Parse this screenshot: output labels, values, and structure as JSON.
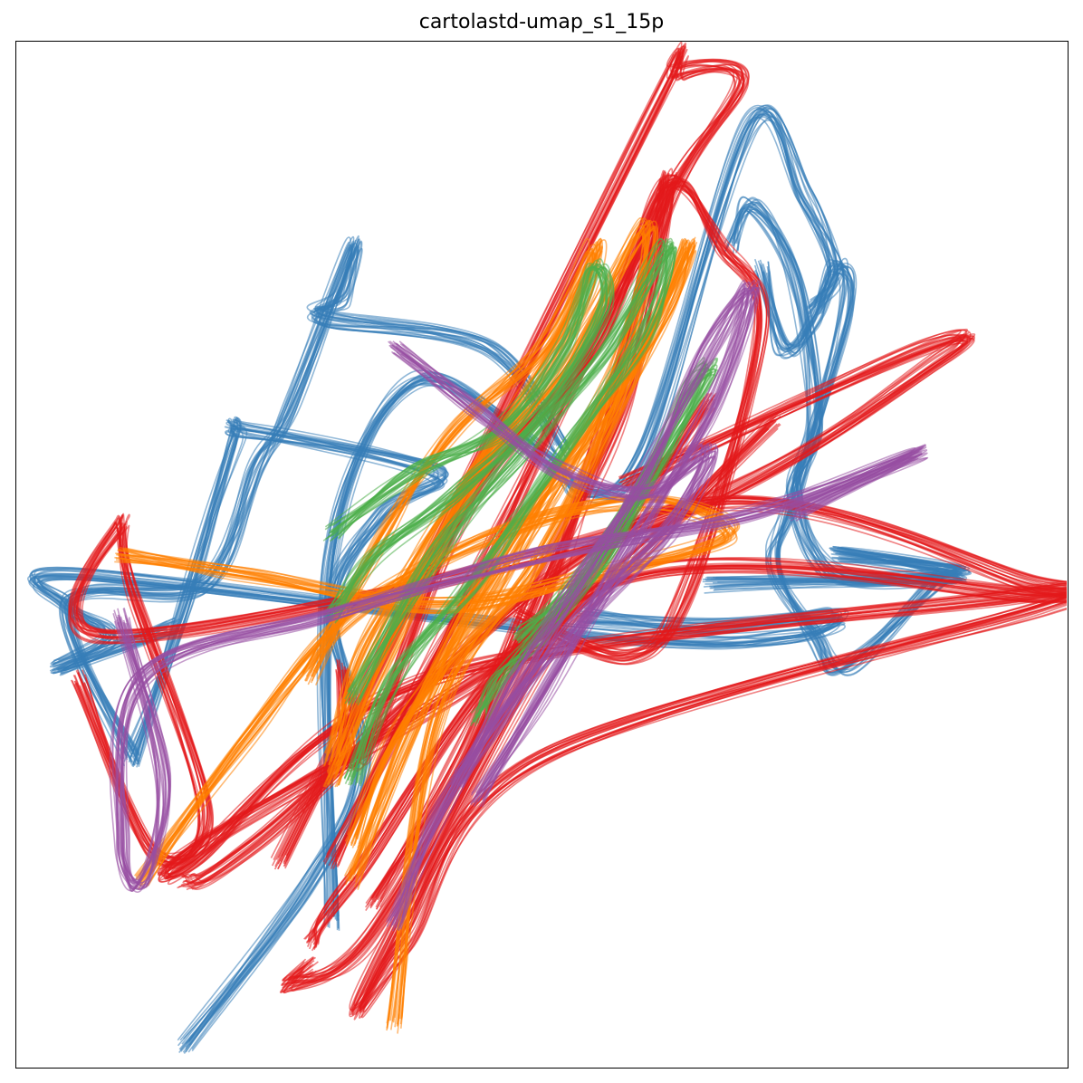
{
  "chart_data": {
    "type": "line",
    "title": "cartolastd-umap_s1_15p",
    "xlabel": "",
    "ylabel": "",
    "grid": false,
    "axis_ticks": false,
    "legend": "none",
    "series": [
      {
        "color": "#377eb8",
        "trajectories": [
          [
            [
              0.16,
              0.98
            ],
            [
              0.28,
              0.82
            ],
            [
              0.33,
              0.7
            ],
            [
              0.3,
              0.55
            ],
            [
              0.35,
              0.46
            ],
            [
              0.4,
              0.42
            ],
            [
              0.22,
              0.38
            ],
            [
              0.21,
              0.39
            ],
            [
              0.16,
              0.55
            ],
            [
              0.11,
              0.7
            ]
          ],
          [
            [
              0.11,
              0.7
            ],
            [
              0.05,
              0.55
            ],
            [
              0.18,
              0.53
            ],
            [
              0.23,
              0.41
            ],
            [
              0.26,
              0.36
            ],
            [
              0.32,
              0.2
            ],
            [
              0.31,
              0.25
            ],
            [
              0.29,
              0.27
            ],
            [
              0.45,
              0.3
            ],
            [
              0.52,
              0.4
            ]
          ],
          [
            [
              0.3,
              0.86
            ],
            [
              0.3,
              0.5
            ],
            [
              0.38,
              0.33
            ],
            [
              0.5,
              0.4
            ],
            [
              0.54,
              0.44
            ],
            [
              0.6,
              0.4
            ],
            [
              0.7,
              0.08
            ],
            [
              0.75,
              0.15
            ],
            [
              0.78,
              0.22
            ],
            [
              0.76,
              0.26
            ]
          ],
          [
            [
              0.68,
              0.2
            ],
            [
              0.7,
              0.16
            ],
            [
              0.74,
              0.23
            ],
            [
              0.76,
              0.37
            ],
            [
              0.74,
              0.44
            ],
            [
              0.78,
              0.52
            ],
            [
              0.9,
              0.52
            ],
            [
              0.78,
              0.5
            ],
            [
              0.9,
              0.52
            ],
            [
              0.66,
              0.53
            ]
          ],
          [
            [
              0.54,
              0.56
            ],
            [
              0.66,
              0.57
            ],
            [
              0.78,
              0.56
            ],
            [
              0.74,
              0.58
            ],
            [
              0.57,
              0.58
            ],
            [
              0.06,
              0.52
            ],
            [
              0.05,
              0.55
            ],
            [
              0.09,
              0.58
            ],
            [
              0.04,
              0.61
            ],
            [
              0.15,
              0.57
            ]
          ],
          [
            [
              0.71,
              0.22
            ],
            [
              0.73,
              0.3
            ],
            [
              0.76,
              0.27
            ],
            [
              0.78,
              0.22
            ],
            [
              0.79,
              0.26
            ],
            [
              0.74,
              0.44
            ],
            [
              0.72,
              0.51
            ],
            [
              0.76,
              0.58
            ],
            [
              0.79,
              0.61
            ],
            [
              0.88,
              0.52
            ]
          ]
        ]
      },
      {
        "color": "#e41a1c",
        "trajectories": [
          [
            [
              0.25,
              0.8
            ],
            [
              0.6,
              0.08
            ],
            [
              0.63,
              0.03
            ],
            [
              0.69,
              0.04
            ],
            [
              0.62,
              0.16
            ],
            [
              0.55,
              0.4
            ],
            [
              0.48,
              0.6
            ],
            [
              0.34,
              0.87
            ],
            [
              0.26,
              0.92
            ],
            [
              0.28,
              0.9
            ]
          ],
          [
            [
              0.06,
              0.62
            ],
            [
              0.13,
              0.79
            ],
            [
              0.18,
              0.75
            ],
            [
              0.11,
              0.53
            ],
            [
              0.1,
              0.47
            ],
            [
              0.09,
              0.58
            ],
            [
              0.6,
              0.47
            ],
            [
              0.88,
              0.31
            ],
            [
              0.86,
              0.3
            ],
            [
              0.58,
              0.43
            ]
          ],
          [
            [
              0.16,
              0.82
            ],
            [
              0.23,
              0.78
            ],
            [
              0.62,
              0.46
            ],
            [
              0.97,
              0.53
            ],
            [
              0.96,
              0.54
            ],
            [
              0.4,
              0.62
            ],
            [
              0.17,
              0.8
            ],
            [
              0.18,
              0.78
            ],
            [
              0.5,
              0.58
            ],
            [
              0.72,
              0.37
            ]
          ],
          [
            [
              0.28,
              0.88
            ],
            [
              0.32,
              0.82
            ],
            [
              0.56,
              0.53
            ],
            [
              0.97,
              0.54
            ],
            [
              0.98,
              0.55
            ],
            [
              0.5,
              0.7
            ],
            [
              0.37,
              0.88
            ],
            [
              0.33,
              0.93
            ],
            [
              0.5,
              0.6
            ],
            [
              0.66,
              0.35
            ]
          ],
          [
            [
              0.31,
              0.61
            ],
            [
              0.33,
              0.7
            ],
            [
              0.43,
              0.45
            ],
            [
              0.55,
              0.3
            ],
            [
              0.62,
              0.14
            ],
            [
              0.67,
              0.2
            ],
            [
              0.71,
              0.28
            ],
            [
              0.64,
              0.53
            ],
            [
              0.58,
              0.6
            ],
            [
              0.48,
              0.56
            ]
          ],
          [
            [
              0.3,
              0.8
            ],
            [
              0.38,
              0.64
            ],
            [
              0.45,
              0.5
            ],
            [
              0.53,
              0.33
            ],
            [
              0.6,
              0.19
            ],
            [
              0.62,
              0.14
            ],
            [
              0.58,
              0.35
            ],
            [
              0.5,
              0.52
            ],
            [
              0.42,
              0.7
            ],
            [
              0.34,
              0.84
            ]
          ]
        ]
      },
      {
        "color": "#ff7f00",
        "trajectories": [
          [
            [
              0.28,
              0.62
            ],
            [
              0.35,
              0.48
            ],
            [
              0.42,
              0.38
            ],
            [
              0.5,
              0.3
            ],
            [
              0.55,
              0.2
            ],
            [
              0.54,
              0.25
            ],
            [
              0.48,
              0.35
            ],
            [
              0.4,
              0.48
            ],
            [
              0.33,
              0.6
            ],
            [
              0.3,
              0.7
            ]
          ],
          [
            [
              0.3,
              0.72
            ],
            [
              0.36,
              0.58
            ],
            [
              0.44,
              0.42
            ],
            [
              0.52,
              0.32
            ],
            [
              0.6,
              0.18
            ],
            [
              0.58,
              0.3
            ],
            [
              0.52,
              0.42
            ],
            [
              0.44,
              0.56
            ],
            [
              0.36,
              0.68
            ],
            [
              0.32,
              0.78
            ]
          ],
          [
            [
              0.1,
              0.5
            ],
            [
              0.22,
              0.52
            ],
            [
              0.4,
              0.55
            ],
            [
              0.55,
              0.52
            ],
            [
              0.68,
              0.48
            ],
            [
              0.6,
              0.45
            ],
            [
              0.46,
              0.48
            ],
            [
              0.32,
              0.56
            ],
            [
              0.22,
              0.68
            ],
            [
              0.12,
              0.82
            ]
          ],
          [
            [
              0.32,
              0.82
            ],
            [
              0.38,
              0.66
            ],
            [
              0.46,
              0.5
            ],
            [
              0.55,
              0.38
            ],
            [
              0.62,
              0.26
            ],
            [
              0.64,
              0.2
            ],
            [
              0.58,
              0.34
            ],
            [
              0.5,
              0.5
            ],
            [
              0.4,
              0.66
            ],
            [
              0.36,
              0.96
            ]
          ]
        ]
      },
      {
        "color": "#4daf4a",
        "trajectories": [
          [
            [
              0.3,
              0.48
            ],
            [
              0.38,
              0.42
            ],
            [
              0.46,
              0.38
            ],
            [
              0.52,
              0.3
            ],
            [
              0.55,
              0.22
            ],
            [
              0.56,
              0.26
            ],
            [
              0.5,
              0.36
            ],
            [
              0.42,
              0.44
            ],
            [
              0.34,
              0.5
            ],
            [
              0.3,
              0.56
            ]
          ],
          [
            [
              0.32,
              0.64
            ],
            [
              0.4,
              0.5
            ],
            [
              0.48,
              0.4
            ],
            [
              0.56,
              0.3
            ],
            [
              0.62,
              0.2
            ],
            [
              0.6,
              0.28
            ],
            [
              0.52,
              0.4
            ],
            [
              0.44,
              0.52
            ],
            [
              0.36,
              0.62
            ],
            [
              0.32,
              0.72
            ]
          ],
          [
            [
              0.48,
              0.58
            ],
            [
              0.54,
              0.52
            ],
            [
              0.6,
              0.42
            ],
            [
              0.64,
              0.34
            ],
            [
              0.66,
              0.32
            ],
            [
              0.62,
              0.4
            ],
            [
              0.56,
              0.5
            ],
            [
              0.5,
              0.58
            ],
            [
              0.46,
              0.62
            ],
            [
              0.44,
              0.66
            ]
          ]
        ]
      },
      {
        "color": "#984ea3",
        "trajectories": [
          [
            [
              0.36,
              0.3
            ],
            [
              0.44,
              0.36
            ],
            [
              0.52,
              0.42
            ],
            [
              0.6,
              0.44
            ],
            [
              0.66,
              0.4
            ],
            [
              0.62,
              0.48
            ],
            [
              0.54,
              0.56
            ],
            [
              0.46,
              0.66
            ],
            [
              0.4,
              0.76
            ],
            [
              0.36,
              0.86
            ]
          ],
          [
            [
              0.42,
              0.72
            ],
            [
              0.48,
              0.62
            ],
            [
              0.54,
              0.52
            ],
            [
              0.6,
              0.42
            ],
            [
              0.66,
              0.3
            ],
            [
              0.7,
              0.24
            ],
            [
              0.66,
              0.36
            ],
            [
              0.58,
              0.5
            ],
            [
              0.5,
              0.64
            ],
            [
              0.44,
              0.74
            ]
          ],
          [
            [
              0.1,
              0.56
            ],
            [
              0.14,
              0.72
            ],
            [
              0.12,
              0.82
            ],
            [
              0.1,
              0.78
            ],
            [
              0.12,
              0.62
            ],
            [
              0.3,
              0.56
            ],
            [
              0.5,
              0.5
            ],
            [
              0.7,
              0.46
            ],
            [
              0.86,
              0.4
            ],
            [
              0.74,
              0.46
            ]
          ]
        ]
      }
    ]
  }
}
